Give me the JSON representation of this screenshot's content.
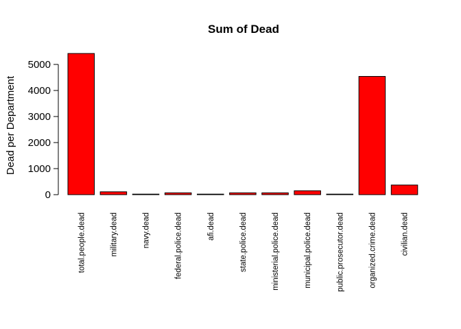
{
  "chart_data": {
    "type": "bar",
    "title": "Sum of Dead",
    "xlabel": "",
    "ylabel": "Dead per Department",
    "categories": [
      "total.people.dead",
      "military.dead",
      "navy.dead",
      "federal.police.dead",
      "afi.dead",
      "state.police.dead",
      "ministerial.police.dead",
      "municipal.police.dead",
      "public.prosecutor.dead",
      "organized.crime.dead",
      "civilian.dead"
    ],
    "values": [
      5420,
      110,
      20,
      70,
      15,
      70,
      70,
      150,
      5,
      4540,
      370
    ],
    "ylim": [
      0,
      5000
    ],
    "yticks": [
      0,
      1000,
      2000,
      3000,
      4000,
      5000
    ],
    "bar_color": "#ff0000",
    "border_color": "#000000",
    "grid": false,
    "legend": "none"
  }
}
